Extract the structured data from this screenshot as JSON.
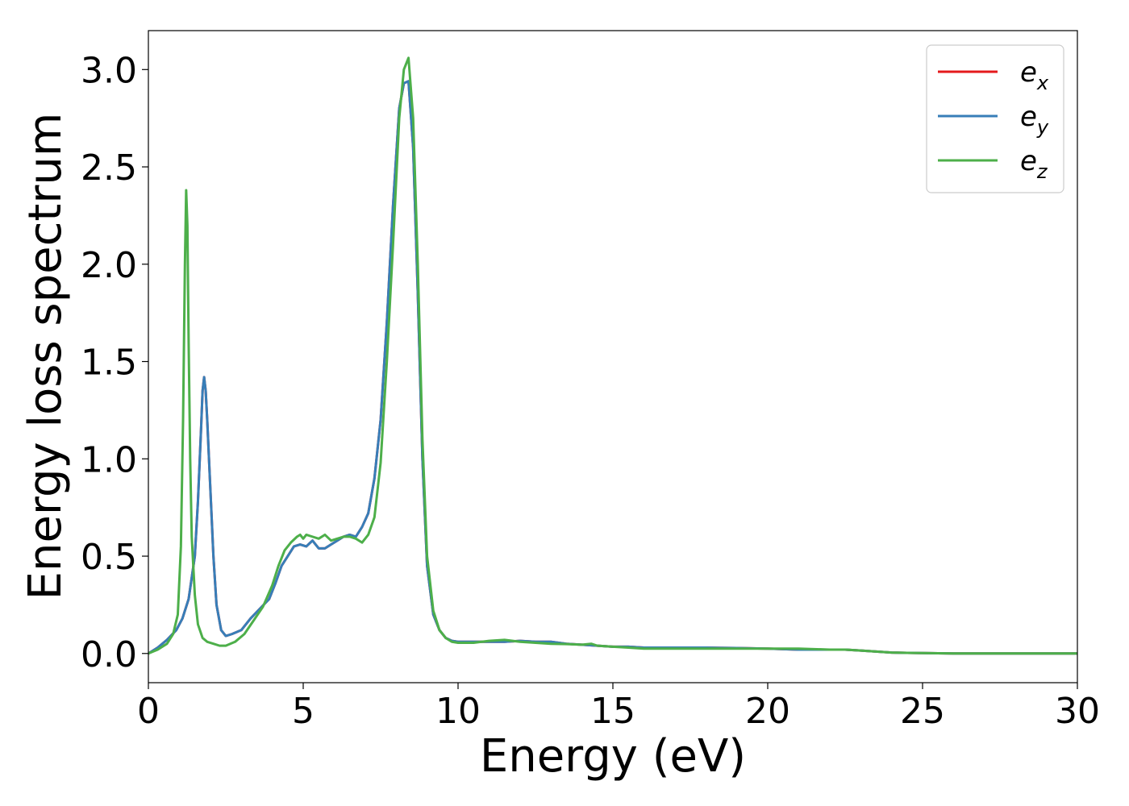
{
  "chart_data": {
    "type": "line",
    "title": "",
    "xlabel": "Energy (eV)",
    "ylabel": "Energy loss spectrum",
    "xlim": [
      0,
      30
    ],
    "ylim": [
      -0.15,
      3.2
    ],
    "xticks": [
      0,
      5,
      10,
      15,
      20,
      25,
      30
    ],
    "xtick_labels": [
      "0",
      "5",
      "10",
      "15",
      "20",
      "25",
      "30"
    ],
    "yticks": [
      0.0,
      0.5,
      1.0,
      1.5,
      2.0,
      2.5,
      3.0
    ],
    "ytick_labels": [
      "0.0",
      "0.5",
      "1.0",
      "1.5",
      "2.0",
      "2.5",
      "3.0"
    ],
    "grid": false,
    "legend": {
      "placement": "top-right",
      "entries": [
        {
          "base": "e",
          "sub": "x",
          "color": "#e41a1c"
        },
        {
          "base": "e",
          "sub": "y",
          "color": "#377eb8"
        },
        {
          "base": "e",
          "sub": "z",
          "color": "#4daf4a"
        }
      ]
    },
    "series": [
      {
        "name": "ex",
        "color": "#e41a1c",
        "x": [
          0,
          0.3,
          0.6,
          0.9,
          1.1,
          1.3,
          1.5,
          1.6,
          1.7,
          1.75,
          1.8,
          1.85,
          1.9,
          2.0,
          2.1,
          2.2,
          2.35,
          2.5,
          2.7,
          3.0,
          3.3,
          3.6,
          3.9,
          4.1,
          4.3,
          4.5,
          4.7,
          4.9,
          5.1,
          5.3,
          5.4,
          5.5,
          5.7,
          5.9,
          6.1,
          6.3,
          6.5,
          6.7,
          6.9,
          7.1,
          7.3,
          7.5,
          7.7,
          7.9,
          8.1,
          8.25,
          8.4,
          8.55,
          8.7,
          8.85,
          9.0,
          9.2,
          9.4,
          9.6,
          9.8,
          10.0,
          10.5,
          11.0,
          11.5,
          12.0,
          12.5,
          13.0,
          13.5,
          14.0,
          14.5,
          15.0,
          15.5,
          16.0,
          17.0,
          18.0,
          19.0,
          20.0,
          21.0,
          22.0,
          22.5,
          23.0,
          23.5,
          24.0,
          24.5,
          25.0,
          26.0,
          28.0,
          30.0
        ],
        "y": [
          0.0,
          0.03,
          0.07,
          0.12,
          0.18,
          0.28,
          0.5,
          0.78,
          1.15,
          1.35,
          1.42,
          1.35,
          1.2,
          0.85,
          0.5,
          0.25,
          0.12,
          0.09,
          0.1,
          0.12,
          0.18,
          0.23,
          0.28,
          0.36,
          0.45,
          0.5,
          0.55,
          0.56,
          0.55,
          0.58,
          0.56,
          0.54,
          0.54,
          0.56,
          0.58,
          0.6,
          0.61,
          0.6,
          0.65,
          0.72,
          0.9,
          1.2,
          1.7,
          2.3,
          2.8,
          2.93,
          2.94,
          2.6,
          1.85,
          1.0,
          0.45,
          0.2,
          0.12,
          0.08,
          0.065,
          0.06,
          0.06,
          0.06,
          0.06,
          0.065,
          0.06,
          0.06,
          0.05,
          0.045,
          0.04,
          0.035,
          0.035,
          0.03,
          0.03,
          0.03,
          0.028,
          0.025,
          0.02,
          0.02,
          0.02,
          0.015,
          0.01,
          0.005,
          0.003,
          0.002,
          0.0,
          0.0,
          0.0
        ]
      },
      {
        "name": "ey",
        "color": "#377eb8",
        "x": [
          0,
          0.3,
          0.6,
          0.9,
          1.1,
          1.3,
          1.5,
          1.6,
          1.7,
          1.75,
          1.8,
          1.85,
          1.9,
          2.0,
          2.1,
          2.2,
          2.35,
          2.5,
          2.7,
          3.0,
          3.3,
          3.6,
          3.9,
          4.1,
          4.3,
          4.5,
          4.7,
          4.9,
          5.1,
          5.3,
          5.4,
          5.5,
          5.7,
          5.9,
          6.1,
          6.3,
          6.5,
          6.7,
          6.9,
          7.1,
          7.3,
          7.5,
          7.7,
          7.9,
          8.1,
          8.25,
          8.4,
          8.55,
          8.7,
          8.85,
          9.0,
          9.2,
          9.4,
          9.6,
          9.8,
          10.0,
          10.5,
          11.0,
          11.5,
          12.0,
          12.5,
          13.0,
          13.5,
          14.0,
          14.5,
          15.0,
          15.5,
          16.0,
          17.0,
          18.0,
          19.0,
          20.0,
          21.0,
          22.0,
          22.5,
          23.0,
          23.5,
          24.0,
          24.5,
          25.0,
          26.0,
          28.0,
          30.0
        ],
        "y": [
          0.0,
          0.03,
          0.07,
          0.12,
          0.18,
          0.28,
          0.5,
          0.78,
          1.15,
          1.35,
          1.42,
          1.35,
          1.2,
          0.85,
          0.5,
          0.25,
          0.12,
          0.09,
          0.1,
          0.12,
          0.18,
          0.23,
          0.28,
          0.36,
          0.45,
          0.5,
          0.55,
          0.56,
          0.55,
          0.58,
          0.56,
          0.54,
          0.54,
          0.56,
          0.58,
          0.6,
          0.61,
          0.6,
          0.65,
          0.72,
          0.9,
          1.2,
          1.7,
          2.3,
          2.8,
          2.93,
          2.94,
          2.6,
          1.85,
          1.0,
          0.45,
          0.2,
          0.12,
          0.08,
          0.065,
          0.06,
          0.06,
          0.06,
          0.06,
          0.065,
          0.06,
          0.06,
          0.05,
          0.045,
          0.04,
          0.035,
          0.035,
          0.03,
          0.03,
          0.03,
          0.028,
          0.025,
          0.02,
          0.02,
          0.02,
          0.015,
          0.01,
          0.005,
          0.003,
          0.002,
          0.0,
          0.0,
          0.0
        ]
      },
      {
        "name": "ez",
        "color": "#4daf4a",
        "x": [
          0,
          0.3,
          0.6,
          0.8,
          0.95,
          1.05,
          1.12,
          1.18,
          1.22,
          1.26,
          1.3,
          1.35,
          1.4,
          1.5,
          1.6,
          1.75,
          1.9,
          2.1,
          2.3,
          2.5,
          2.8,
          3.1,
          3.4,
          3.7,
          4.0,
          4.2,
          4.4,
          4.6,
          4.8,
          4.9,
          5.0,
          5.1,
          5.3,
          5.5,
          5.7,
          5.9,
          6.1,
          6.3,
          6.5,
          6.7,
          6.9,
          7.1,
          7.3,
          7.5,
          7.7,
          7.9,
          8.1,
          8.25,
          8.4,
          8.55,
          8.7,
          8.85,
          9.0,
          9.2,
          9.4,
          9.6,
          9.8,
          10.0,
          10.5,
          11.0,
          11.5,
          12.0,
          12.5,
          13.0,
          13.5,
          14.0,
          14.3,
          14.5,
          15.0,
          15.5,
          16.0,
          17.0,
          18.0,
          19.0,
          20.0,
          21.0,
          22.0,
          22.5,
          23.0,
          23.5,
          24.0,
          24.5,
          25.0,
          26.0,
          28.0,
          30.0
        ],
        "y": [
          0.0,
          0.02,
          0.05,
          0.1,
          0.2,
          0.55,
          1.2,
          2.0,
          2.38,
          2.2,
          1.6,
          1.0,
          0.6,
          0.3,
          0.15,
          0.08,
          0.06,
          0.05,
          0.04,
          0.04,
          0.06,
          0.1,
          0.17,
          0.24,
          0.35,
          0.45,
          0.53,
          0.57,
          0.6,
          0.61,
          0.59,
          0.61,
          0.6,
          0.59,
          0.61,
          0.58,
          0.59,
          0.6,
          0.6,
          0.59,
          0.57,
          0.61,
          0.7,
          0.98,
          1.5,
          2.1,
          2.75,
          3.0,
          3.06,
          2.75,
          2.0,
          1.1,
          0.5,
          0.22,
          0.12,
          0.08,
          0.06,
          0.055,
          0.055,
          0.065,
          0.07,
          0.06,
          0.055,
          0.05,
          0.048,
          0.045,
          0.05,
          0.04,
          0.035,
          0.03,
          0.025,
          0.025,
          0.025,
          0.025,
          0.025,
          0.025,
          0.02,
          0.02,
          0.015,
          0.01,
          0.005,
          0.003,
          0.002,
          0.0,
          0.0,
          0.0
        ]
      }
    ]
  }
}
